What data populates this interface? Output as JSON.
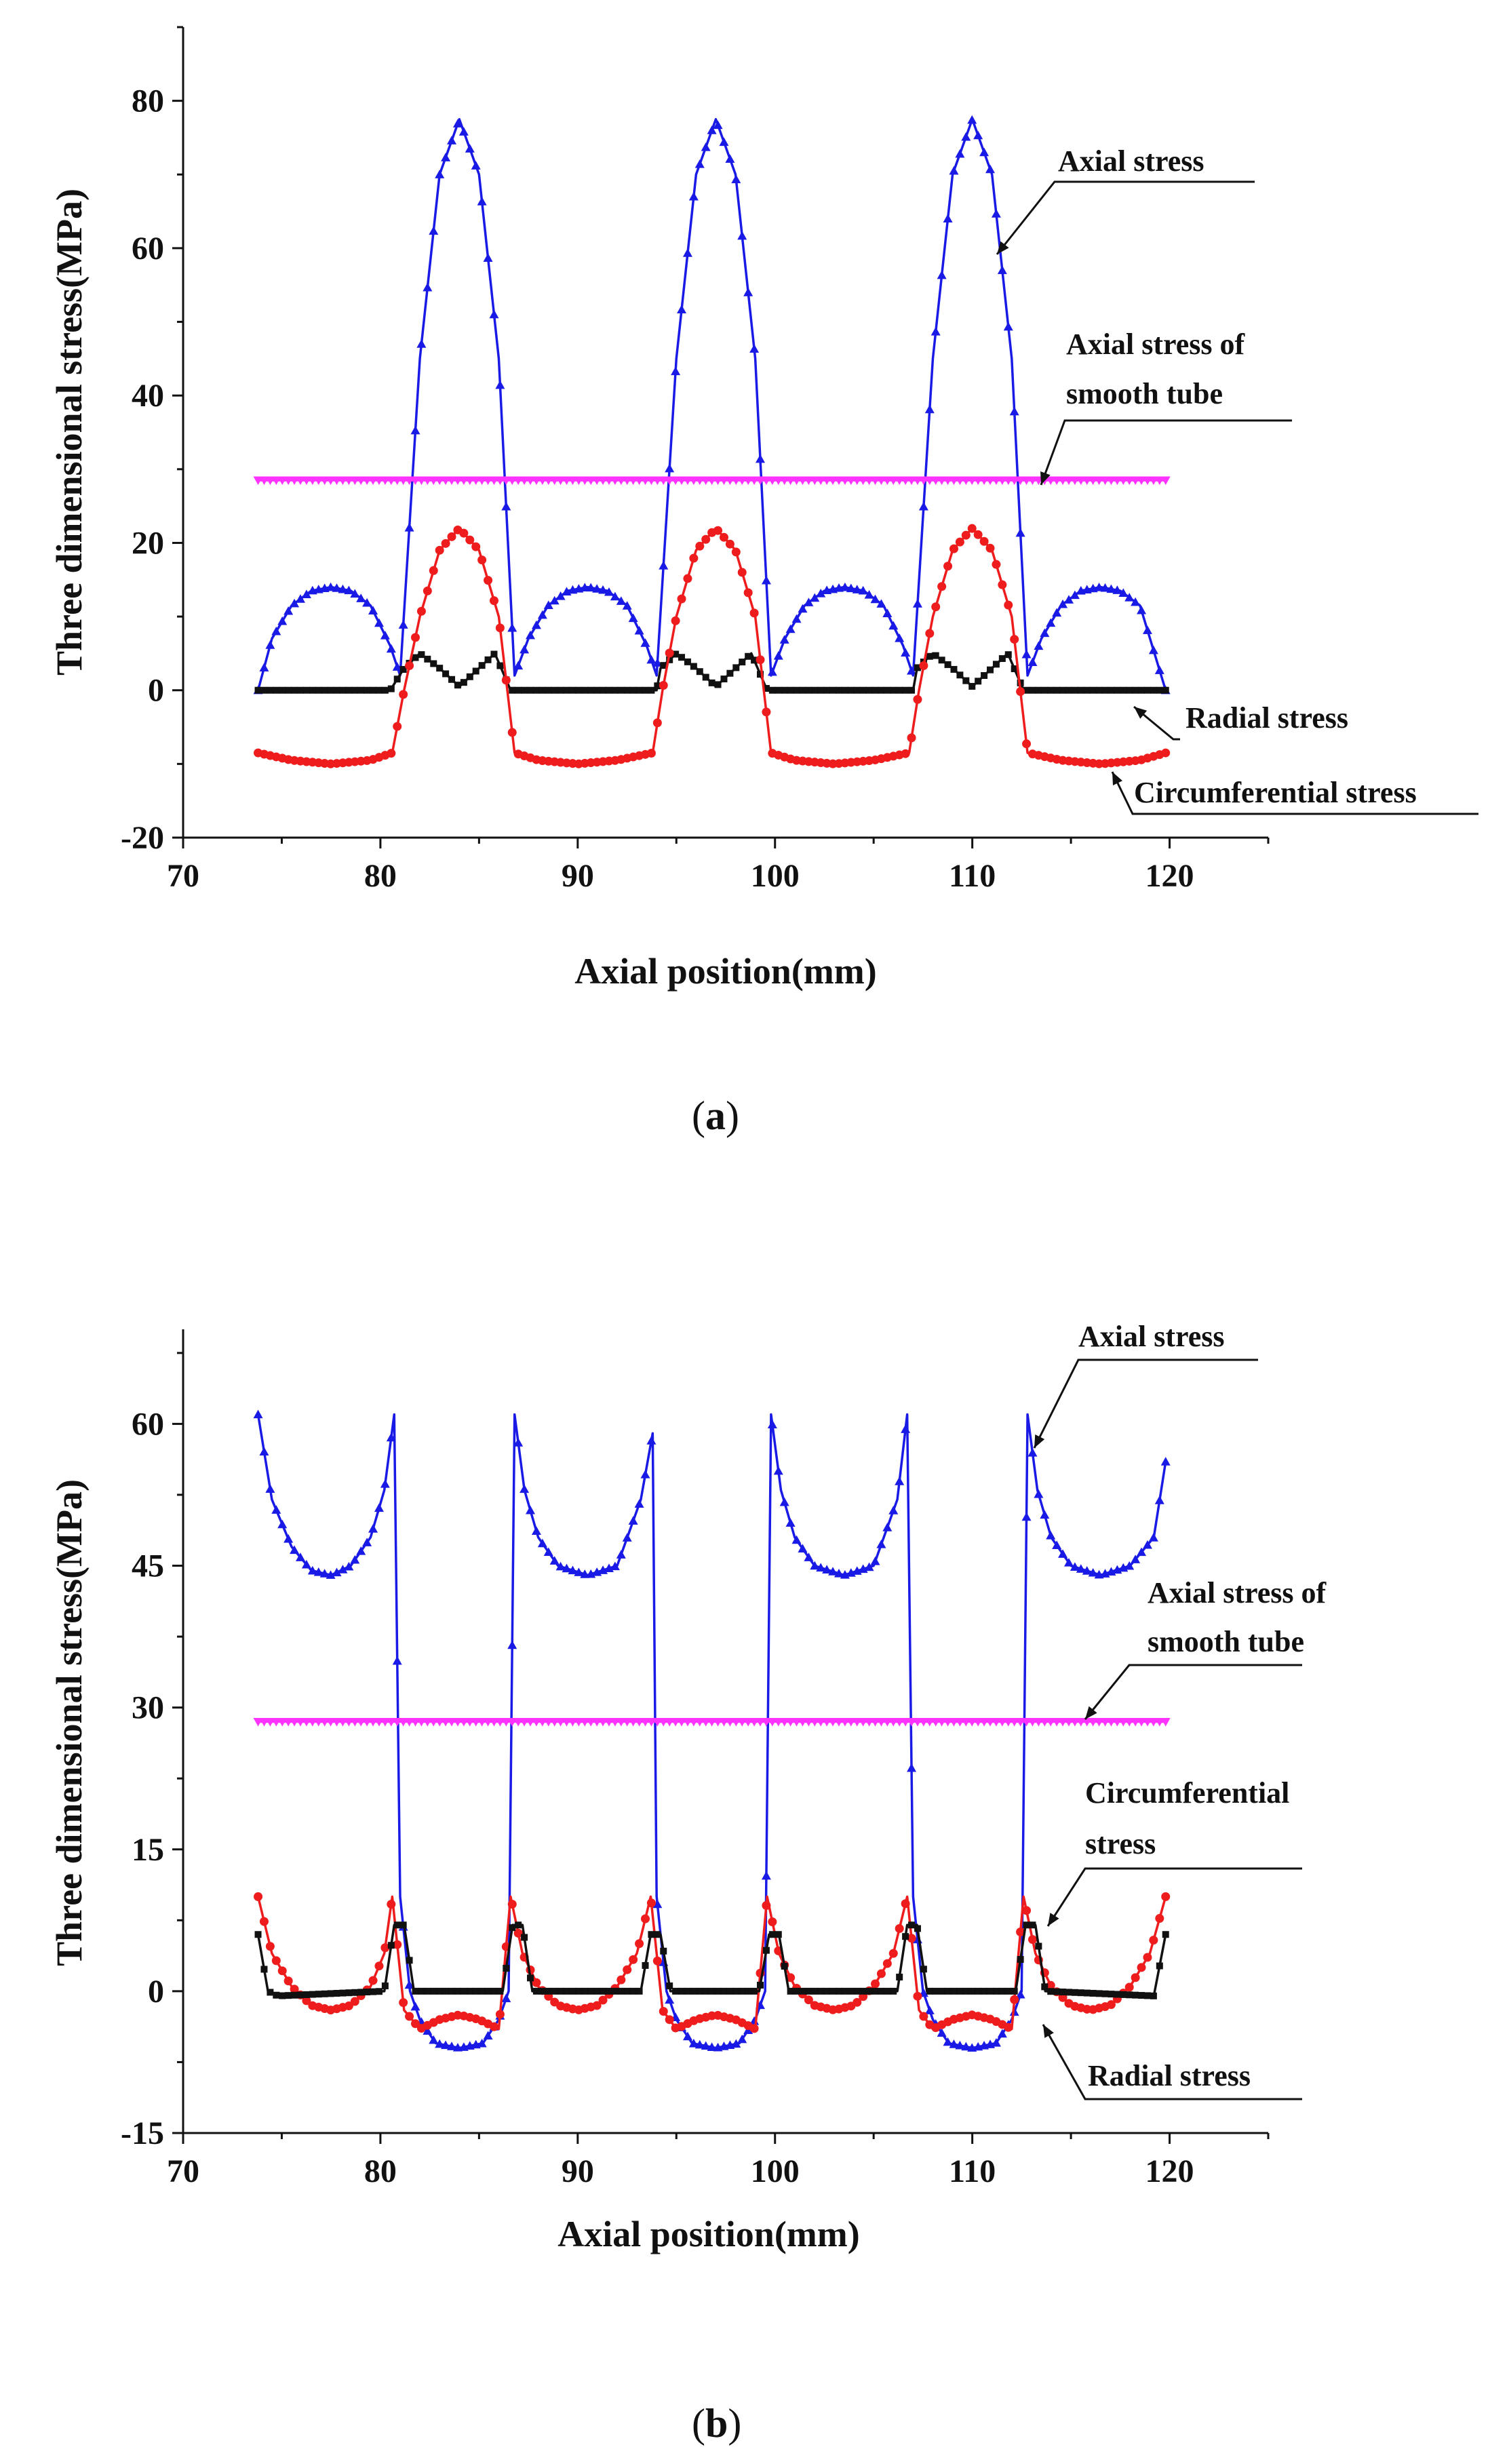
{
  "chart_data": [
    {
      "type": "line",
      "panel": "a",
      "caption_open": "(",
      "caption_letter": "a",
      "caption_close": ")",
      "xlabel": "Axial position(mm)",
      "ylabel": "Three dimensional stress(MPa)",
      "xlim": [
        70,
        125
      ],
      "ylim": [
        -20,
        90
      ],
      "xticks": [
        70,
        80,
        90,
        100,
        110,
        120
      ],
      "yticks": [
        -20,
        0,
        20,
        40,
        60,
        80
      ],
      "series": [
        {
          "name": "Axial stress",
          "color": "#1a1ae6",
          "marker": "triangle",
          "x": [
            73.8,
            74.5,
            75.5,
            76.5,
            77.5,
            78.5,
            79.5,
            80.5,
            81.0,
            82.0,
            83.0,
            84.0,
            85.0,
            86.0,
            86.8,
            87.5,
            88.5,
            89.5,
            90.5,
            91.5,
            92.5,
            93.5,
            94.0,
            95.0,
            96.0,
            97.0,
            98.0,
            99.0,
            99.8,
            100.5,
            101.5,
            102.5,
            103.5,
            104.5,
            105.5,
            106.5,
            107.0,
            108.0,
            109.0,
            110.0,
            111.0,
            112.0,
            112.8,
            113.5,
            114.5,
            115.5,
            116.5,
            117.5,
            118.5,
            119.8
          ],
          "y": [
            0,
            7,
            11.5,
            13.5,
            14,
            13.5,
            11.5,
            6,
            2,
            45,
            70,
            77.5,
            70,
            45,
            2,
            7,
            11.5,
            13.5,
            14,
            13.5,
            11.5,
            6,
            2,
            45,
            70,
            77.5,
            70,
            45,
            2,
            7,
            11.5,
            13.5,
            14,
            13.5,
            11.5,
            6,
            2,
            45,
            70,
            77.5,
            70,
            45,
            2,
            7,
            11.5,
            13.5,
            14,
            13.5,
            11.5,
            0
          ]
        },
        {
          "name": "Axial stress of smooth tube",
          "color": "#ff33ff",
          "marker": "triangle-down",
          "x": [
            73.8,
            119.8
          ],
          "y": [
            28.5,
            28.5
          ]
        },
        {
          "name": "Radial stress",
          "color": "#111111",
          "marker": "square",
          "x": [
            73.8,
            80.5,
            81.2,
            82.0,
            83.0,
            84.0,
            85.0,
            85.8,
            86.6,
            94.0,
            94.2,
            95.0,
            96.0,
            97.0,
            98.0,
            98.8,
            99.6,
            107.0,
            107.2,
            108.0,
            109.0,
            110.0,
            111.0,
            111.8,
            112.6,
            119.8
          ],
          "y": [
            0,
            0,
            3,
            5,
            3,
            0.5,
            3,
            5,
            0,
            0,
            3,
            5,
            3,
            0.5,
            3,
            5,
            0,
            0,
            3,
            5,
            3,
            0.5,
            3,
            5,
            0,
            0
          ]
        },
        {
          "name": "Circumferential stress",
          "color": "#ee1c1c",
          "marker": "circle",
          "x": [
            73.8,
            75.5,
            77.5,
            79.5,
            80.6,
            81.2,
            82.0,
            83.0,
            84.0,
            85.0,
            86.0,
            86.8,
            88.0,
            90.0,
            92.0,
            93.8,
            94.3,
            95.0,
            96.0,
            97.0,
            98.0,
            99.0,
            99.8,
            101.0,
            103.0,
            105.0,
            106.8,
            107.3,
            108.0,
            109.0,
            110.0,
            111.0,
            112.0,
            112.8,
            114.5,
            116.5,
            118.5,
            119.8
          ],
          "y": [
            -8.5,
            -9.5,
            -10,
            -9.5,
            -8.5,
            0,
            10,
            19,
            22,
            19,
            10,
            -8.5,
            -9.5,
            -10,
            -9.5,
            -8.5,
            0,
            10,
            19,
            22,
            19,
            10,
            -8.5,
            -9.5,
            -10,
            -9.5,
            -8.5,
            0,
            10,
            19,
            22,
            19,
            10,
            -8.5,
            -9.5,
            -10,
            -9.5,
            -8.5
          ]
        }
      ],
      "annotations": [
        {
          "text": "Axial stress"
        },
        {
          "text": "Axial stress of"
        },
        {
          "text": "smooth tube"
        },
        {
          "text": "Radial stress"
        },
        {
          "text": "Circumferential stress"
        }
      ]
    },
    {
      "type": "line",
      "panel": "b",
      "caption_open": "(",
      "caption_letter": "b",
      "caption_close": ")",
      "xlabel": "Axial position(mm)",
      "ylabel": "Three dimensional stress(MPa)",
      "xlim": [
        70,
        125
      ],
      "ylim": [
        -15,
        70
      ],
      "xticks": [
        70,
        80,
        90,
        100,
        110,
        120
      ],
      "yticks": [
        -15,
        0,
        15,
        30,
        45,
        60
      ],
      "series": [
        {
          "name": "Axial stress",
          "color": "#1a1ae6",
          "marker": "triangle",
          "x": [
            73.8,
            74.5,
            75.5,
            76.5,
            77.5,
            78.5,
            79.5,
            80.2,
            80.7,
            81.0,
            81.5,
            82.0,
            82.8,
            84.0,
            85.2,
            86.0,
            86.5,
            86.8,
            87.3,
            88.0,
            89.0,
            90.5,
            92.0,
            93.2,
            93.8,
            94.0,
            94.5,
            95.0,
            95.8,
            97.0,
            98.2,
            99.0,
            99.5,
            99.8,
            100.3,
            101.0,
            102.0,
            103.5,
            105.0,
            106.2,
            106.7,
            107.0,
            107.5,
            108.0,
            108.8,
            110.0,
            111.2,
            112.0,
            112.5,
            112.8,
            113.3,
            114.0,
            115.0,
            116.5,
            118.0,
            119.2,
            119.8
          ],
          "y": [
            61,
            52,
            47,
            44.5,
            44,
            45,
            48,
            53,
            61,
            10,
            0,
            -3,
            -5.5,
            -6,
            -5.5,
            -3,
            0,
            61,
            53,
            48,
            45,
            44,
            45,
            52,
            59,
            10,
            0,
            -3,
            -5.5,
            -6,
            -5.5,
            -3,
            0,
            61,
            53,
            48,
            45,
            44,
            45,
            52,
            61,
            10,
            0,
            -3,
            -5.5,
            -6,
            -5.5,
            -3,
            0,
            61,
            53,
            48,
            45,
            44,
            45,
            48,
            56
          ]
        },
        {
          "name": "Axial stress of smooth tube",
          "color": "#ff33ff",
          "marker": "triangle-down",
          "x": [
            73.8,
            119.8
          ],
          "y": [
            28.5,
            28.5
          ]
        },
        {
          "name": "Circumferential stress",
          "color": "#ee1c1c",
          "marker": "circle",
          "x": [
            73.8,
            74.5,
            75.5,
            76.5,
            77.5,
            78.5,
            79.5,
            80.2,
            80.6,
            81.2,
            82.0,
            83.0,
            84.0,
            85.0,
            86.0,
            86.6,
            87.2,
            88.0,
            89.0,
            90.0,
            91.0,
            92.0,
            93.0,
            93.7,
            94.3,
            95.0,
            96.0,
            97.0,
            98.0,
            99.0,
            99.6,
            100.2,
            101.0,
            102.0,
            103.0,
            104.0,
            105.0,
            106.0,
            106.7,
            107.3,
            108.0,
            109.0,
            110.0,
            111.0,
            112.0,
            112.6,
            113.2,
            114.0,
            115.0,
            116.0,
            117.0,
            118.0,
            119.0,
            119.8
          ],
          "y": [
            10,
            4,
            0.5,
            -1.5,
            -2,
            -1.5,
            0.5,
            4,
            10,
            -2,
            -4,
            -3,
            -2.5,
            -3,
            -4,
            10,
            4,
            0.5,
            -1.5,
            -2,
            -1.5,
            0.5,
            4,
            10,
            -2,
            -4,
            -3,
            -2.5,
            -3,
            -4,
            10,
            4,
            0.5,
            -1.5,
            -2,
            -1.5,
            0.5,
            4,
            10,
            -2,
            -4,
            -3,
            -2.5,
            -3,
            -4,
            10,
            4,
            0.5,
            -1.5,
            -2,
            -1.5,
            0.5,
            4,
            10
          ]
        },
        {
          "name": "Radial stress",
          "color": "#111111",
          "marker": "square",
          "x": [
            73.8,
            74.3,
            74.8,
            80.2,
            80.7,
            81.2,
            81.7,
            86.2,
            86.7,
            87.2,
            87.7,
            93.2,
            93.7,
            94.2,
            94.7,
            99.2,
            99.7,
            100.2,
            100.7,
            106.2,
            106.7,
            107.2,
            107.7,
            112.2,
            112.7,
            113.2,
            113.7,
            119.2,
            119.8
          ],
          "y": [
            6,
            0,
            -0.5,
            0,
            7,
            7,
            0,
            0,
            7,
            7,
            0,
            0,
            6,
            6,
            0,
            0,
            6,
            6,
            0,
            0,
            7,
            7,
            0,
            0,
            7,
            7,
            0,
            -0.5,
            6
          ]
        }
      ],
      "annotations": [
        {
          "text": "Axial stress"
        },
        {
          "text": "Axial stress of"
        },
        {
          "text": "smooth tube"
        },
        {
          "text": "Circumferential"
        },
        {
          "text": "stress"
        },
        {
          "text": "Radial stress"
        }
      ]
    }
  ]
}
